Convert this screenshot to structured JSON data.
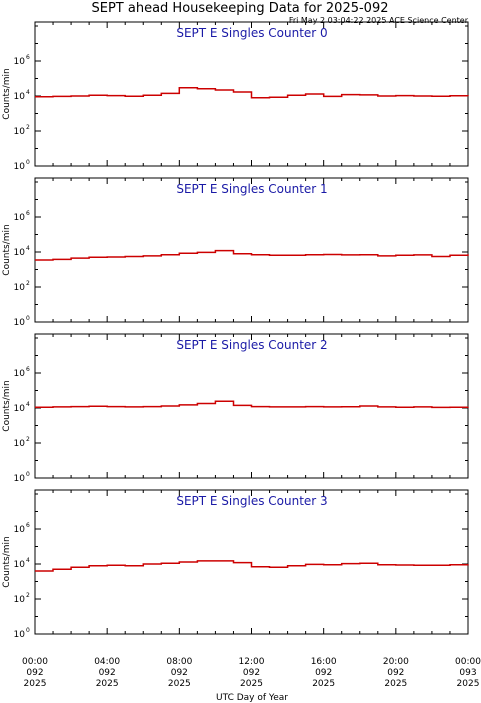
{
  "header": {
    "title": "SEPT ahead Housekeeping Data for 2025-092",
    "timestamp": "Fri May  2 03:04:22 2025 ACE Science Center"
  },
  "colors": {
    "line": "#cc0000",
    "panel_title": "#1a1aa6",
    "axis": "#000000"
  },
  "chart_data": [
    {
      "type": "line",
      "title": "SEPT E Singles Counter 0",
      "ylabel": "Counts/min",
      "yscale": "log",
      "ylim": [
        1,
        100000000
      ],
      "xlim": [
        0,
        24
      ],
      "x": [
        0,
        1,
        2,
        3,
        4,
        5,
        6,
        7,
        8,
        9,
        10,
        11,
        12,
        13,
        14,
        15,
        16,
        17,
        18,
        19,
        20,
        21,
        22,
        23,
        24
      ],
      "y": [
        9000,
        9500,
        10000,
        11000,
        10500,
        9800,
        11000,
        14000,
        30000,
        26000,
        22000,
        17000,
        8000,
        8500,
        11000,
        13000,
        9500,
        12000,
        11500,
        10000,
        10500,
        10000,
        9800,
        10200,
        10000
      ]
    },
    {
      "type": "line",
      "title": "SEPT E Singles Counter 1",
      "ylabel": "Counts/min",
      "yscale": "log",
      "ylim": [
        1,
        100000000
      ],
      "xlim": [
        0,
        24
      ],
      "x": [
        0,
        1,
        2,
        3,
        4,
        5,
        6,
        7,
        8,
        9,
        10,
        11,
        12,
        13,
        14,
        15,
        16,
        17,
        18,
        19,
        20,
        21,
        22,
        23,
        24
      ],
      "y": [
        3500,
        3800,
        4500,
        5000,
        5200,
        5500,
        6000,
        7000,
        8500,
        9500,
        12000,
        8000,
        7000,
        6500,
        6500,
        7000,
        7200,
        6800,
        7000,
        6000,
        6500,
        6800,
        5500,
        6500,
        7500
      ]
    },
    {
      "type": "line",
      "title": "SEPT E Singles Counter 2",
      "ylabel": "Counts/min",
      "yscale": "log",
      "ylim": [
        1,
        100000000
      ],
      "xlim": [
        0,
        24
      ],
      "x": [
        0,
        1,
        2,
        3,
        4,
        5,
        6,
        7,
        8,
        9,
        10,
        11,
        12,
        13,
        14,
        15,
        16,
        17,
        18,
        19,
        20,
        21,
        22,
        23,
        24
      ],
      "y": [
        11000,
        11500,
        12000,
        12500,
        12000,
        11500,
        12000,
        13000,
        15000,
        18000,
        24000,
        14000,
        12000,
        11500,
        11500,
        12000,
        11500,
        11800,
        13000,
        11500,
        11000,
        11500,
        10800,
        11000,
        11200
      ]
    },
    {
      "type": "line",
      "title": "SEPT E Singles Counter 3",
      "ylabel": "Counts/min",
      "yscale": "log",
      "ylim": [
        1,
        100000000
      ],
      "xlim": [
        0,
        24
      ],
      "x": [
        0,
        1,
        2,
        3,
        4,
        5,
        6,
        7,
        8,
        9,
        10,
        11,
        12,
        13,
        14,
        15,
        16,
        17,
        18,
        19,
        20,
        21,
        22,
        23,
        24
      ],
      "y": [
        4000,
        5000,
        6500,
        8000,
        8500,
        8000,
        10000,
        11000,
        13000,
        15000,
        15000,
        12000,
        7000,
        6500,
        8000,
        9500,
        9000,
        10500,
        11000,
        9000,
        8800,
        8500,
        8500,
        9000,
        9500
      ]
    }
  ],
  "yticks": [
    {
      "base": "10",
      "exp": "0",
      "value": 1
    },
    {
      "base": "10",
      "exp": "2",
      "value": 100
    },
    {
      "base": "10",
      "exp": "4",
      "value": 10000
    },
    {
      "base": "10",
      "exp": "6",
      "value": 1000000
    }
  ],
  "xticks": [
    {
      "value": 0,
      "time": "00:00",
      "day": "092",
      "year": "2025"
    },
    {
      "value": 4,
      "time": "04:00",
      "day": "092",
      "year": "2025"
    },
    {
      "value": 8,
      "time": "08:00",
      "day": "092",
      "year": "2025"
    },
    {
      "value": 12,
      "time": "12:00",
      "day": "092",
      "year": "2025"
    },
    {
      "value": 16,
      "time": "16:00",
      "day": "092",
      "year": "2025"
    },
    {
      "value": 20,
      "time": "20:00",
      "day": "092",
      "year": "2025"
    },
    {
      "value": 24,
      "time": "00:00",
      "day": "093",
      "year": "2025"
    }
  ],
  "xlabel": "UTC Day of Year"
}
